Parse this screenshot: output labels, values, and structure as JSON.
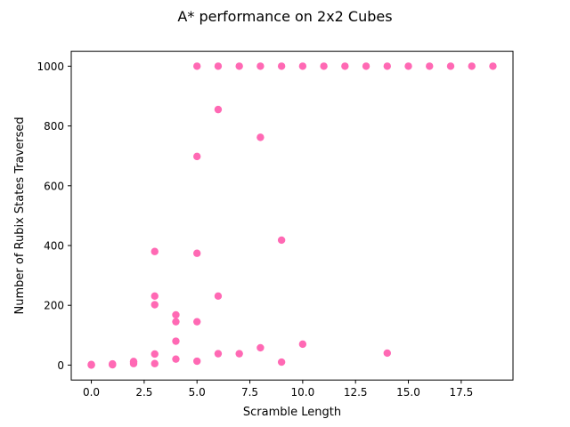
{
  "chart_data": {
    "type": "scatter",
    "title": "A* performance on 2x2 Cubes",
    "xlabel": "Scramble Length",
    "ylabel": "Number of Rubix States Traversed",
    "xlim": [
      -0.95,
      19.95
    ],
    "ylim": [
      -50,
      1050
    ],
    "xticks": [
      0.0,
      2.5,
      5.0,
      7.5,
      10.0,
      12.5,
      15.0,
      17.5
    ],
    "xtick_labels": [
      "0.0",
      "2.5",
      "5.0",
      "7.5",
      "10.0",
      "12.5",
      "15.0",
      "17.5"
    ],
    "yticks": [
      0,
      200,
      400,
      600,
      800,
      1000
    ],
    "ytick_labels": [
      "0",
      "200",
      "400",
      "600",
      "800",
      "1000"
    ],
    "grid": false,
    "marker_color": "#ff69b4",
    "points": [
      {
        "x": 0,
        "y": 1
      },
      {
        "x": 0,
        "y": 2
      },
      {
        "x": 0,
        "y": 0
      },
      {
        "x": 1,
        "y": 2
      },
      {
        "x": 1,
        "y": 4
      },
      {
        "x": 1,
        "y": 1
      },
      {
        "x": 2,
        "y": 5
      },
      {
        "x": 2,
        "y": 10
      },
      {
        "x": 2,
        "y": 12
      },
      {
        "x": 3,
        "y": 5
      },
      {
        "x": 3,
        "y": 37
      },
      {
        "x": 3,
        "y": 202
      },
      {
        "x": 3,
        "y": 231
      },
      {
        "x": 3,
        "y": 380
      },
      {
        "x": 4,
        "y": 20
      },
      {
        "x": 4,
        "y": 80
      },
      {
        "x": 4,
        "y": 145
      },
      {
        "x": 4,
        "y": 168
      },
      {
        "x": 5,
        "y": 13
      },
      {
        "x": 5,
        "y": 145
      },
      {
        "x": 5,
        "y": 374
      },
      {
        "x": 5,
        "y": 698
      },
      {
        "x": 5,
        "y": 1000
      },
      {
        "x": 6,
        "y": 38
      },
      {
        "x": 6,
        "y": 231
      },
      {
        "x": 6,
        "y": 855
      },
      {
        "x": 6,
        "y": 1000
      },
      {
        "x": 7,
        "y": 38
      },
      {
        "x": 7,
        "y": 1000
      },
      {
        "x": 8,
        "y": 58
      },
      {
        "x": 8,
        "y": 762
      },
      {
        "x": 8,
        "y": 1000
      },
      {
        "x": 9,
        "y": 10
      },
      {
        "x": 9,
        "y": 418
      },
      {
        "x": 9,
        "y": 1000
      },
      {
        "x": 10,
        "y": 70
      },
      {
        "x": 10,
        "y": 1000
      },
      {
        "x": 11,
        "y": 1000
      },
      {
        "x": 12,
        "y": 1000
      },
      {
        "x": 13,
        "y": 1000
      },
      {
        "x": 14,
        "y": 40
      },
      {
        "x": 14,
        "y": 1000
      },
      {
        "x": 15,
        "y": 1000
      },
      {
        "x": 16,
        "y": 1000
      },
      {
        "x": 17,
        "y": 1000
      },
      {
        "x": 18,
        "y": 1000
      },
      {
        "x": 19,
        "y": 1000
      }
    ]
  }
}
